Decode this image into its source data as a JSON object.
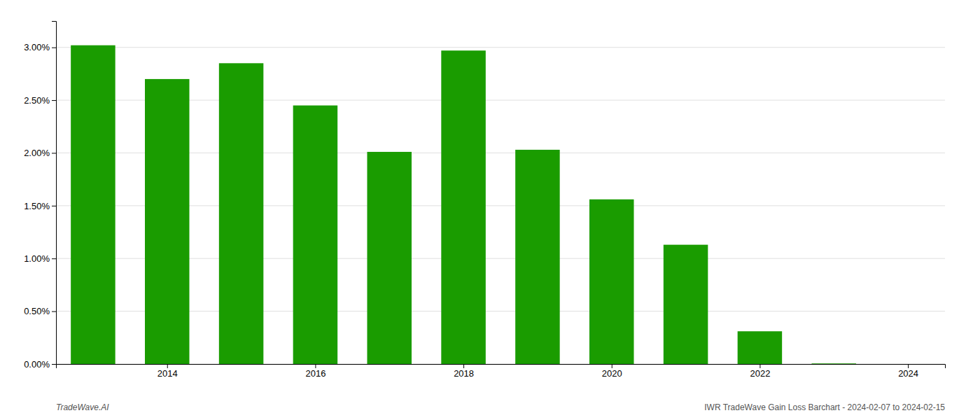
{
  "chart_data": {
    "type": "bar",
    "x": [
      2013,
      2014,
      2015,
      2016,
      2017,
      2018,
      2019,
      2020,
      2021,
      2022,
      2023
    ],
    "values": [
      0.0302,
      0.027,
      0.0285,
      0.0245,
      0.0201,
      0.0297,
      0.0203,
      0.0156,
      0.0113,
      0.0031,
      5e-05
    ],
    "color": "#1a9c00",
    "xlim": [
      2012.5,
      2024.5
    ],
    "xticks": [
      2014,
      2016,
      2018,
      2020,
      2022,
      2024
    ],
    "ylim": [
      0,
      0.0325
    ],
    "yticks": [
      {
        "value": 0.0,
        "label": "0.00%"
      },
      {
        "value": 0.005,
        "label": "0.50%"
      },
      {
        "value": 0.01,
        "label": "1.00%"
      },
      {
        "value": 0.015,
        "label": "1.50%"
      },
      {
        "value": 0.02,
        "label": "2.00%"
      },
      {
        "value": 0.025,
        "label": "2.50%"
      },
      {
        "value": 0.03,
        "label": "3.00%"
      }
    ],
    "grid": true,
    "annotations": [
      "TradeWave.AI",
      "IWR TradeWave Gain Loss Barchart - 2024-02-07 to 2024-02-15"
    ]
  }
}
